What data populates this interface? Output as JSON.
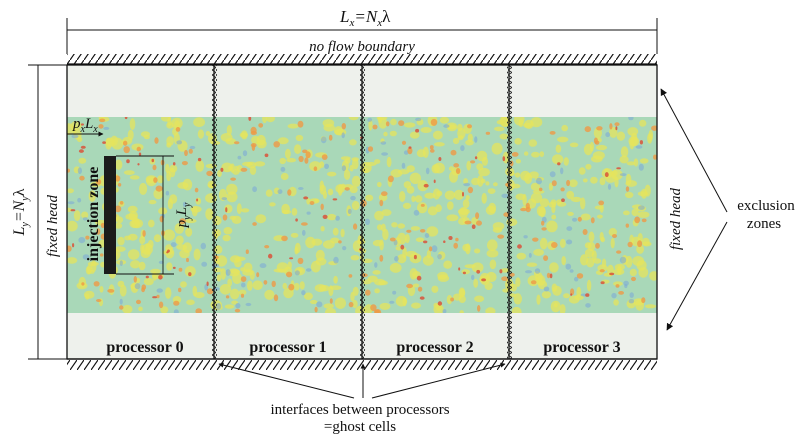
{
  "labels": {
    "width_L": "L",
    "width_L_sub": "x",
    "width_N": "N",
    "width_N_sub": "x",
    "width_lambda": "λ",
    "height_L": "L",
    "height_L_sub": "y",
    "height_N": "N",
    "height_N_sub": "y",
    "height_lambda": "λ",
    "no_flow_boundary": "no flow boundary",
    "fixed_head_left": "fixed head",
    "fixed_head_right": "fixed head",
    "exclusion_line1": "exclusion",
    "exclusion_line2": "zones",
    "injection_zone": "injection zone",
    "px_p": "p",
    "px_p_sub": "x",
    "px_L": "L",
    "px_L_sub": "x",
    "py_p": "p",
    "py_p_sub": "y",
    "py_L": "L",
    "py_L_sub": "y",
    "interfaces_line1": "interfaces between processors",
    "interfaces_line2": "=ghost cells"
  },
  "processors": [
    {
      "label": "processor 0"
    },
    {
      "label": "processor 1"
    },
    {
      "label": "processor 2"
    },
    {
      "label": "processor 3"
    }
  ],
  "colors": {
    "exclusion_zone": "#eef1ec",
    "field_base": "#a9d8b8",
    "field_yellow": "#e6e45c",
    "field_orange": "#ef9a45",
    "field_red": "#d9533a",
    "field_blue": "#7aa8d8",
    "injection_bar": "#1b1b1b",
    "line": "#111111"
  }
}
